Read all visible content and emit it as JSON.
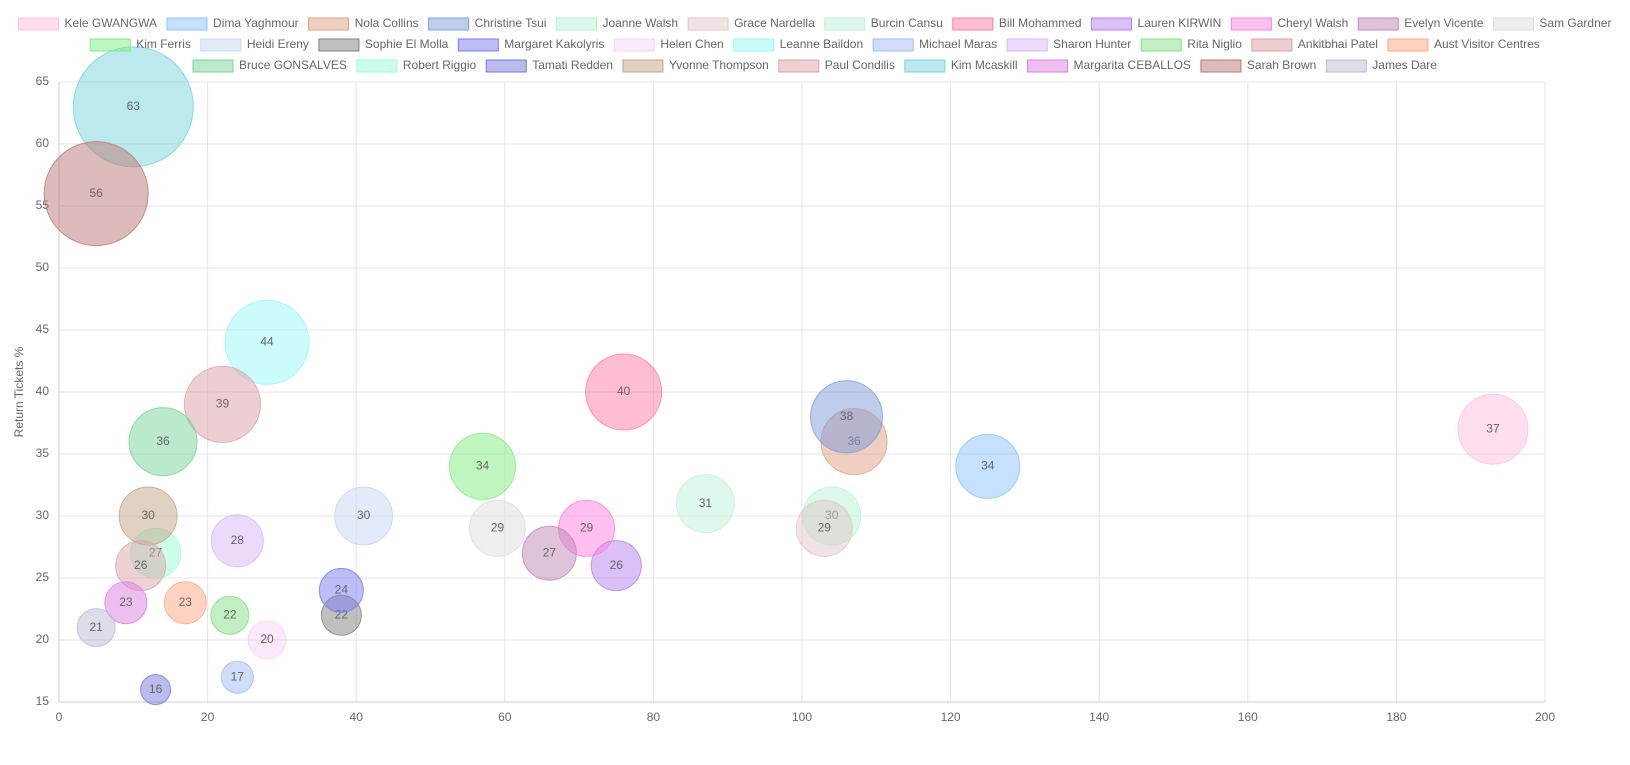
{
  "chart_data": {
    "type": "bubble",
    "y_label": "Return Tickets %",
    "xlim": [
      0,
      200
    ],
    "xticks": [
      0,
      20,
      40,
      60,
      80,
      100,
      120,
      140,
      160,
      180,
      200
    ],
    "ylim": [
      15,
      65
    ],
    "yticks": [
      15,
      20,
      25,
      30,
      35,
      40,
      45,
      50,
      55,
      60,
      65
    ],
    "grid": true,
    "legend": "top",
    "series": [
      {
        "name": "Kele GWANGWA",
        "color": "#ffc0e0",
        "points": [
          {
            "x": 193,
            "y": 37,
            "r": 35
          }
        ]
      },
      {
        "name": "Dima Yaghmour",
        "color": "#8cc4ff",
        "points": [
          {
            "x": 125,
            "y": 34,
            "r": 32
          }
        ]
      },
      {
        "name": "Nola Collins",
        "color": "#e0a080",
        "points": [
          {
            "x": 107,
            "y": 36,
            "r": 33
          }
        ]
      },
      {
        "name": "Christine Tsui",
        "color": "#809cdc",
        "points": [
          {
            "x": 106,
            "y": 38,
            "r": 36
          }
        ]
      },
      {
        "name": "Joanne Walsh",
        "color": "#b8f2d6",
        "points": [
          {
            "x": 104,
            "y": 30,
            "r": 29
          }
        ]
      },
      {
        "name": "Grace Nardella",
        "color": "#e0c8c8",
        "points": [
          {
            "x": 103,
            "y": 29,
            "r": 28
          }
        ]
      },
      {
        "name": "Burcin Cansu",
        "color": "#c0f2da",
        "points": [
          {
            "x": 87,
            "y": 31,
            "r": 29
          }
        ]
      },
      {
        "name": "Bill Mohammed",
        "color": "#ff7ca4",
        "points": [
          {
            "x": 76,
            "y": 40,
            "r": 38
          }
        ]
      },
      {
        "name": "Lauren KIRWIN",
        "color": "#b880f0",
        "points": [
          {
            "x": 75,
            "y": 26,
            "r": 25
          }
        ]
      },
      {
        "name": "Cheryl Walsh",
        "color": "#ff80e0",
        "points": [
          {
            "x": 71,
            "y": 29,
            "r": 28
          }
        ]
      },
      {
        "name": "Evelyn Vicente",
        "color": "#c088b8",
        "points": [
          {
            "x": 66,
            "y": 27,
            "r": 27
          }
        ]
      },
      {
        "name": "Sam Gardner",
        "color": "#dcdedc",
        "points": [
          {
            "x": 59,
            "y": 29,
            "r": 28
          }
        ]
      },
      {
        "name": "Kim Ferris",
        "color": "#80ee80",
        "points": [
          {
            "x": 57,
            "y": 34,
            "r": 33
          }
        ]
      },
      {
        "name": "Heidi Ereny",
        "color": "#c4d8f4",
        "points": [
          {
            "x": 41,
            "y": 30,
            "r": 29
          }
        ]
      },
      {
        "name": "Sophie El Molla",
        "color": "#808080",
        "points": [
          {
            "x": 38,
            "y": 22,
            "r": 20
          }
        ]
      },
      {
        "name": "Margaret Kakolyris",
        "color": "#7c7cf0",
        "points": [
          {
            "x": 38,
            "y": 24,
            "r": 22
          }
        ]
      },
      {
        "name": "Helen Chen",
        "color": "#f6d4f6",
        "points": [
          {
            "x": 28,
            "y": 20,
            "r": 19
          }
        ]
      },
      {
        "name": "Leanne Baildon",
        "color": "#98f8f8",
        "points": [
          {
            "x": 28,
            "y": 44,
            "r": 42
          }
        ]
      },
      {
        "name": "Michael Maras",
        "color": "#a0bcf4",
        "points": [
          {
            "x": 24,
            "y": 17,
            "r": 16
          }
        ]
      },
      {
        "name": "Sharon Hunter",
        "color": "#d8b8f8",
        "points": [
          {
            "x": 24,
            "y": 28,
            "r": 26
          }
        ]
      },
      {
        "name": "Rita Niglio",
        "color": "#88dc88",
        "points": [
          {
            "x": 23,
            "y": 22,
            "r": 19
          }
        ]
      },
      {
        "name": "Ankitbhai Patel",
        "color": "#dca0a8",
        "points": [
          {
            "x": 22,
            "y": 39,
            "r": 38
          }
        ]
      },
      {
        "name": "Aust Visitor Centres",
        "color": "#ffa880",
        "points": [
          {
            "x": 17,
            "y": 23,
            "r": 21
          }
        ]
      },
      {
        "name": "Bruce GONSALVES",
        "color": "#78d498",
        "points": [
          {
            "x": 14,
            "y": 36,
            "r": 34
          }
        ]
      },
      {
        "name": "Robert Riggio",
        "color": "#98ffd4",
        "points": [
          {
            "x": 13,
            "y": 27,
            "r": 25
          }
        ]
      },
      {
        "name": "Tamati Redden",
        "color": "#7878dc",
        "points": [
          {
            "x": 13,
            "y": 16,
            "r": 15
          }
        ]
      },
      {
        "name": "Yvonne Thompson",
        "color": "#c4a488",
        "points": [
          {
            "x": 12,
            "y": 30,
            "r": 29
          }
        ]
      },
      {
        "name": "Paul Condilis",
        "color": "#dca4ac",
        "points": [
          {
            "x": 11,
            "y": 26,
            "r": 25
          }
        ]
      },
      {
        "name": "Kim Mcaskill",
        "color": "#78d4dc",
        "points": [
          {
            "x": 10,
            "y": 63,
            "r": 60
          }
        ]
      },
      {
        "name": "Margarita CEBALLOS",
        "color": "#dc80e4",
        "points": [
          {
            "x": 9,
            "y": 23,
            "r": 21
          }
        ]
      },
      {
        "name": "Sarah Brown",
        "color": "#bc7878",
        "points": [
          {
            "x": 5,
            "y": 56,
            "r": 52
          }
        ]
      },
      {
        "name": "James Dare",
        "color": "#bcbcd4",
        "points": [
          {
            "x": 5,
            "y": 21,
            "r": 19
          }
        ]
      }
    ]
  }
}
